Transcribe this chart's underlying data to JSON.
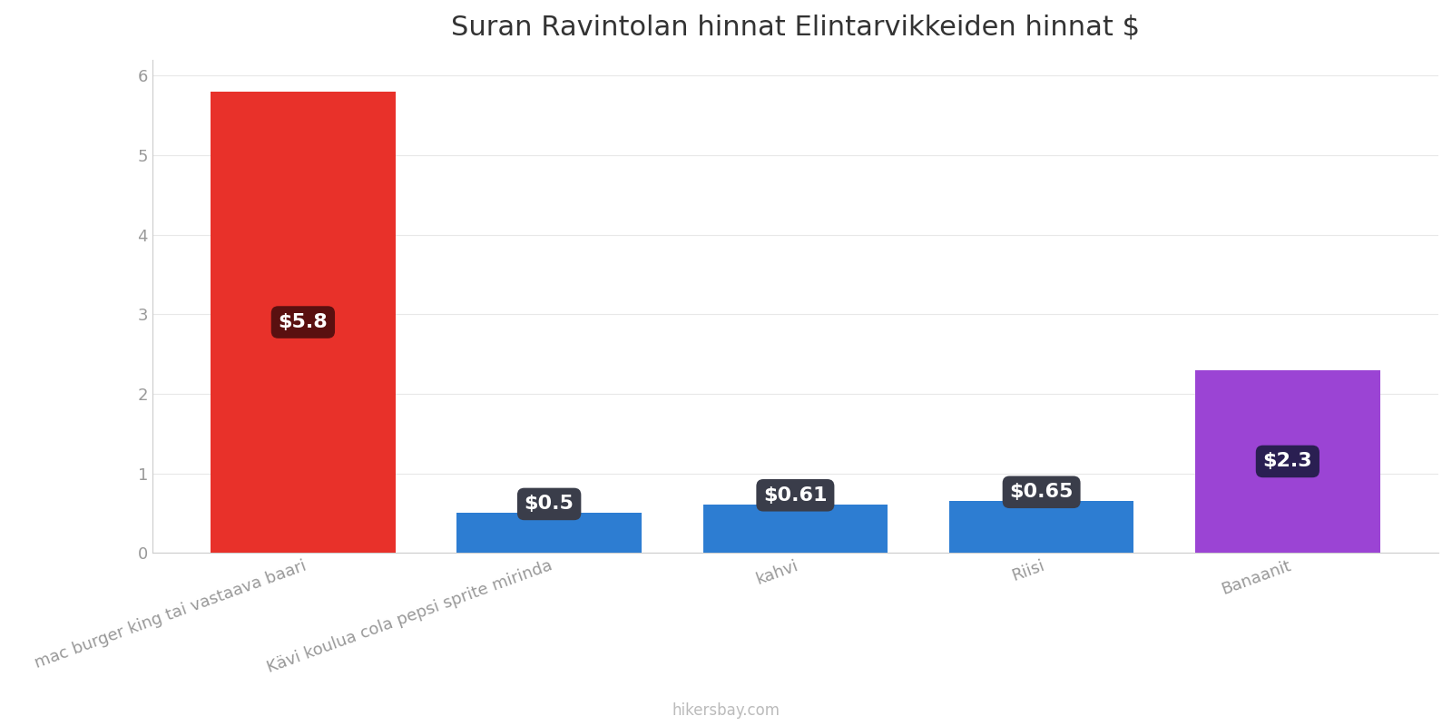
{
  "title": "Suran Ravintolan hinnat Elintarvikkeiden hinnat $",
  "categories": [
    "mac burger king tai vastaava baari",
    "Kävi koulua cola pepsi sprite mirinda",
    "kahvi",
    "Riisi",
    "Banaanit"
  ],
  "values": [
    5.8,
    0.5,
    0.61,
    0.65,
    2.3
  ],
  "bar_colors": [
    "#e8312a",
    "#2d7dd2",
    "#2d7dd2",
    "#2d7dd2",
    "#9b44d4"
  ],
  "label_texts": [
    "$5.8",
    "$0.5",
    "$0.61",
    "$0.65",
    "$2.3"
  ],
  "label_box_colors": [
    "#5a1010",
    "#3a3d4a",
    "#3a3d4a",
    "#3a3d4a",
    "#2a1f52"
  ],
  "ylim": [
    0,
    6.2
  ],
  "yticks": [
    0,
    1,
    2,
    3,
    4,
    5,
    6
  ],
  "background_color": "#ffffff",
  "title_fontsize": 22,
  "tick_fontsize": 13,
  "label_fontsize": 16,
  "watermark": "hikersbay.com",
  "bar_width": 0.75
}
